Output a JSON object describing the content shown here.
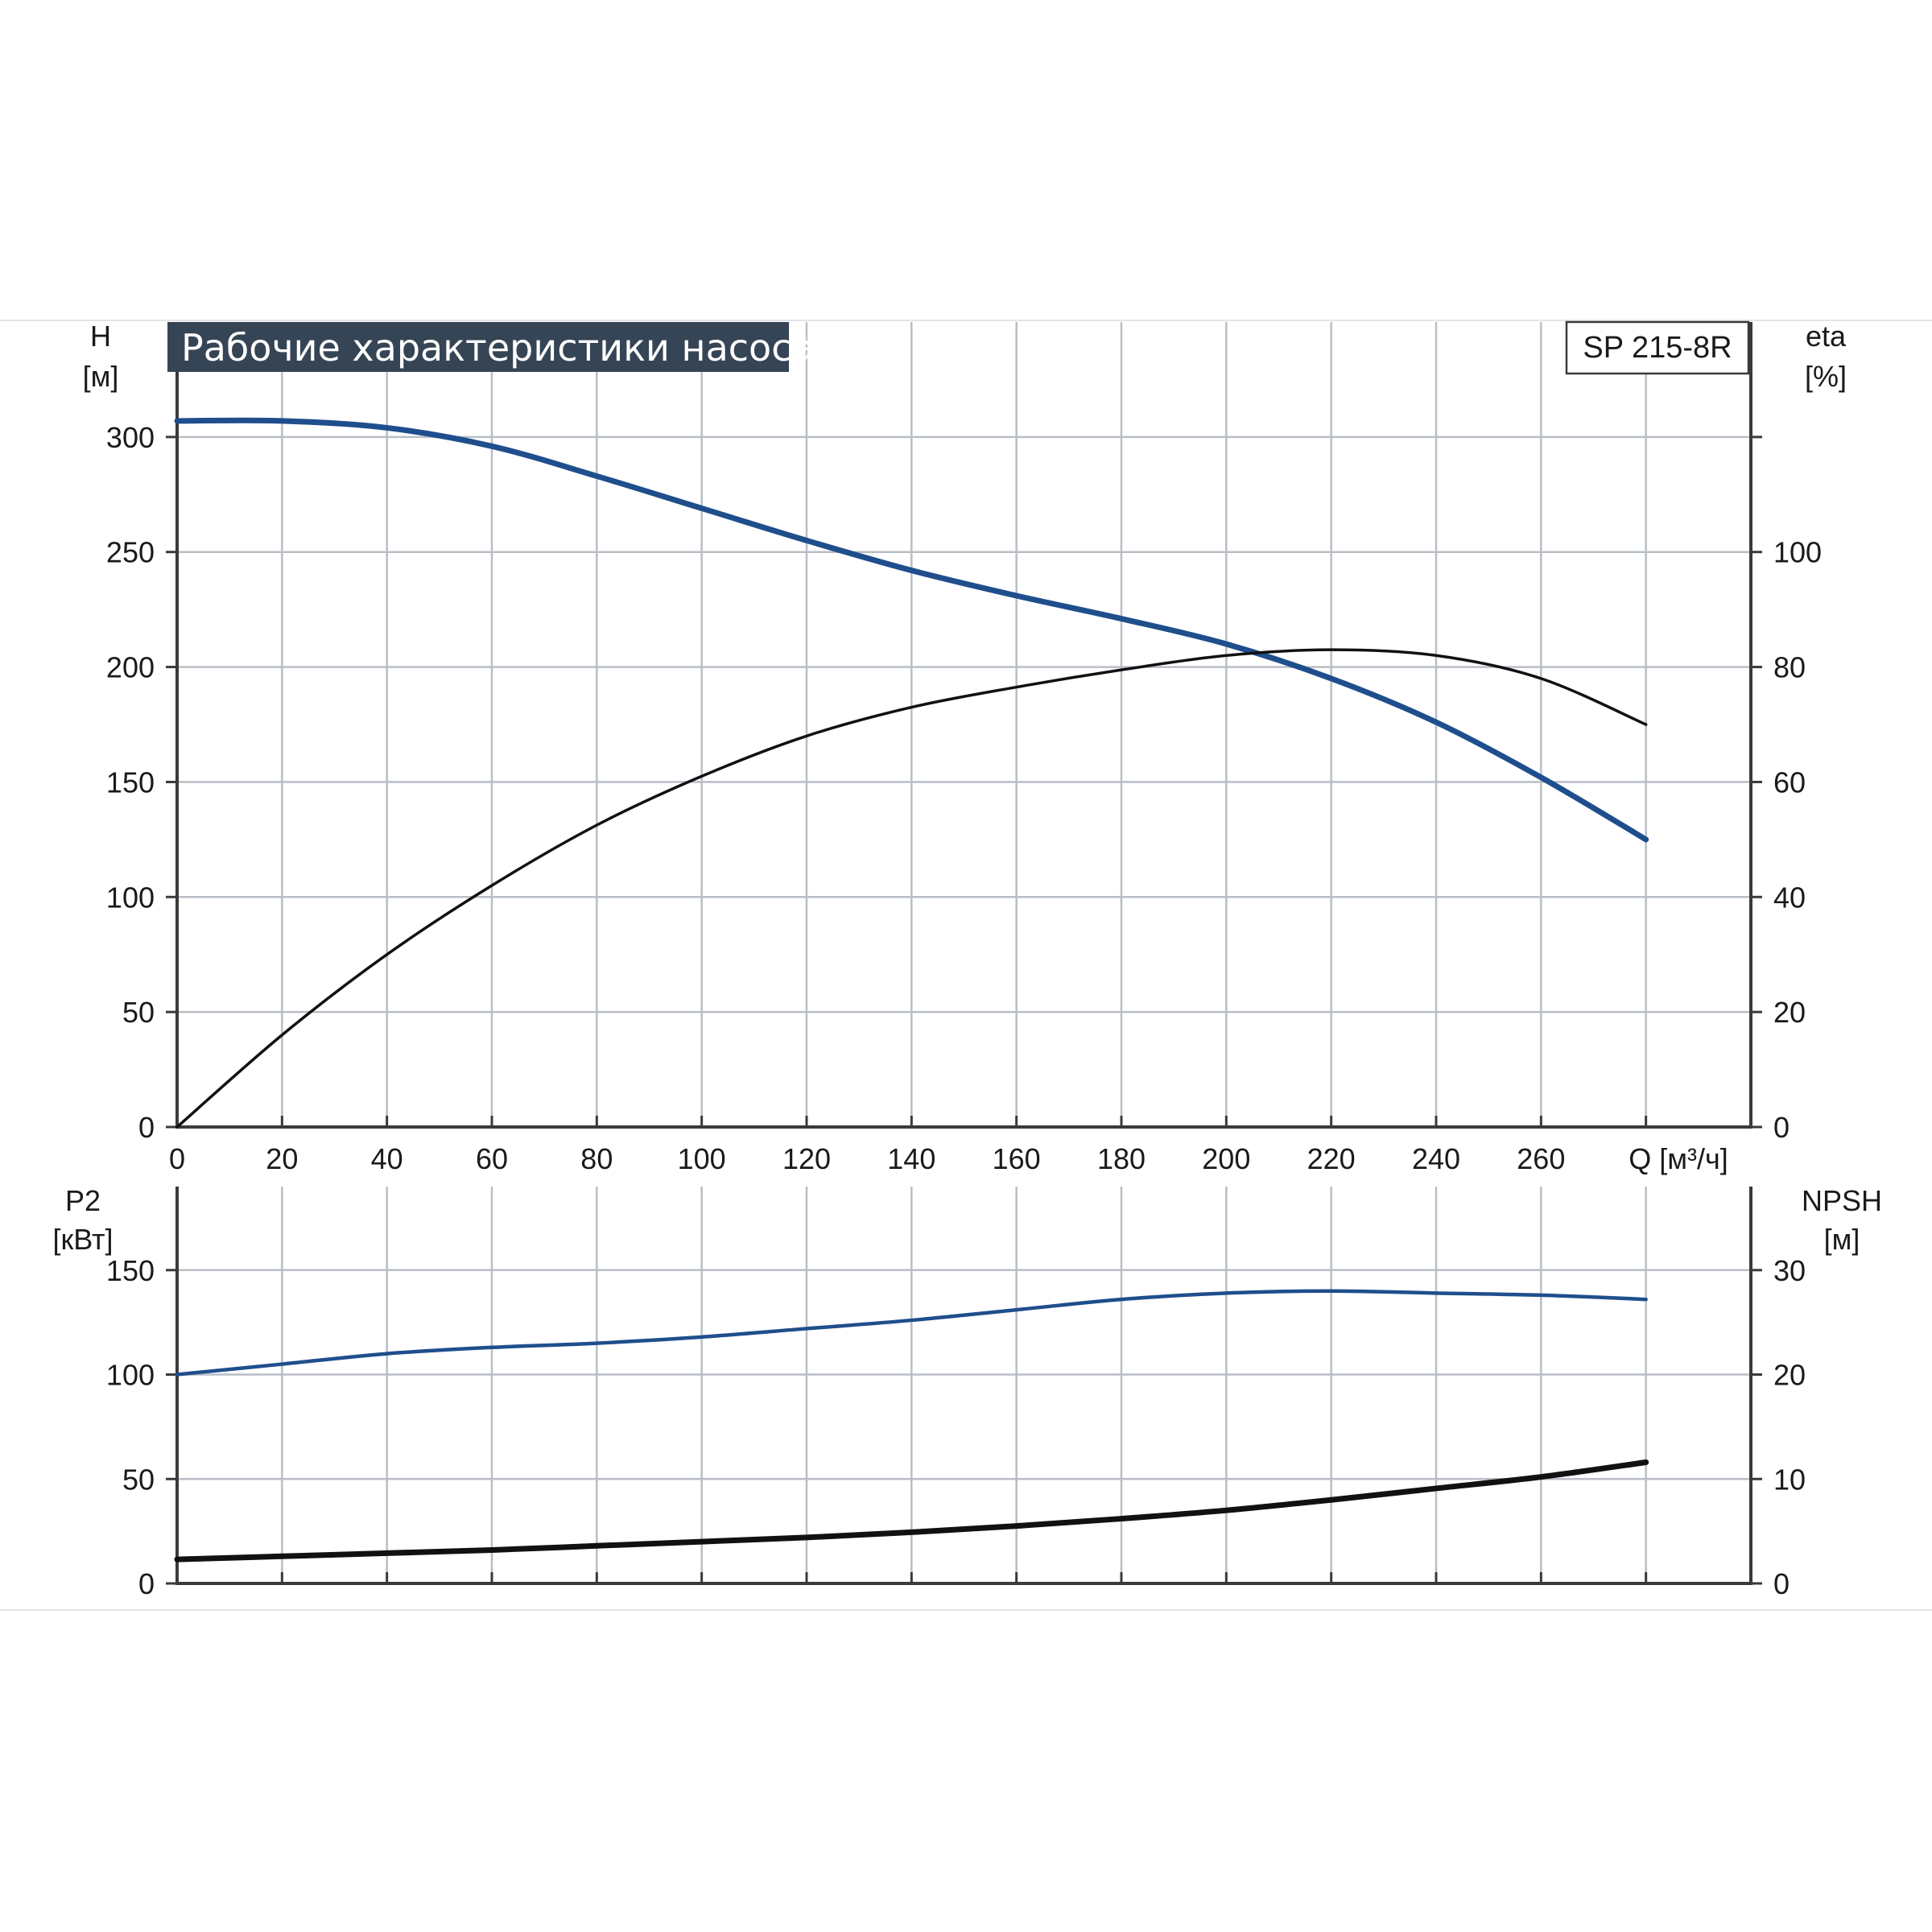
{
  "title": "Рабочие характеристики насоса",
  "model": "SP 215-8R",
  "colors": {
    "blue": "#1f4e8c",
    "black": "#111111",
    "title_bg": "#364555"
  },
  "chart_data": [
    {
      "type": "line",
      "name": "upper",
      "xlabel": "Q [м³/ч]",
      "xlim": [
        0,
        300
      ],
      "x_ticks": [
        0,
        20,
        40,
        60,
        80,
        100,
        120,
        140,
        160,
        180,
        200,
        220,
        240,
        260
      ],
      "left_axis": {
        "label": "H",
        "unit": "[м]",
        "lim": [
          0,
          350
        ],
        "ticks": [
          0,
          50,
          100,
          150,
          200,
          250,
          300
        ]
      },
      "right_axis": {
        "label": "eta",
        "unit": "[%]",
        "lim": [
          0,
          140
        ],
        "ticks": [
          0,
          20,
          40,
          60,
          80,
          100
        ]
      },
      "grid": true,
      "series": [
        {
          "axis": "left",
          "color": "blue",
          "x": [
            0,
            20,
            40,
            60,
            80,
            100,
            120,
            140,
            160,
            180,
            200,
            220,
            240,
            260,
            280
          ],
          "y": [
            307,
            307,
            304,
            296,
            283,
            269,
            255,
            242,
            231,
            221,
            210,
            195,
            176,
            152,
            125
          ]
        },
        {
          "axis": "right",
          "color": "black",
          "x": [
            0,
            20,
            40,
            60,
            80,
            100,
            120,
            140,
            160,
            180,
            200,
            220,
            240,
            260,
            280
          ],
          "y": [
            0,
            16,
            30,
            42,
            52.5,
            61,
            68,
            73,
            76.5,
            79.5,
            82,
            83,
            82,
            78,
            70
          ]
        }
      ]
    },
    {
      "type": "line",
      "name": "lower",
      "xlim": [
        0,
        300
      ],
      "left_axis": {
        "label": "P2",
        "unit": "[кВт]",
        "lim": [
          0,
          190
        ],
        "ticks": [
          0,
          50,
          100,
          150
        ]
      },
      "right_axis": {
        "label": "NPSH",
        "unit": "[м]",
        "lim": [
          0,
          38
        ],
        "ticks": [
          0,
          10,
          20,
          30
        ]
      },
      "grid": true,
      "series": [
        {
          "axis": "left",
          "color": "blue",
          "x": [
            0,
            20,
            40,
            60,
            80,
            100,
            120,
            140,
            160,
            180,
            200,
            220,
            240,
            260,
            280
          ],
          "y": [
            100,
            105,
            110,
            113,
            115,
            118,
            122,
            126,
            131,
            136,
            139,
            140,
            139,
            138,
            136
          ]
        },
        {
          "axis": "right",
          "color": "black",
          "x": [
            0,
            20,
            40,
            60,
            80,
            100,
            120,
            140,
            160,
            180,
            200,
            220,
            240,
            260,
            280
          ],
          "y": [
            2.3,
            2.6,
            2.9,
            3.2,
            3.6,
            4.0,
            4.4,
            4.9,
            5.5,
            6.2,
            7.0,
            8.0,
            9.1,
            10.2,
            11.6
          ]
        }
      ]
    }
  ]
}
